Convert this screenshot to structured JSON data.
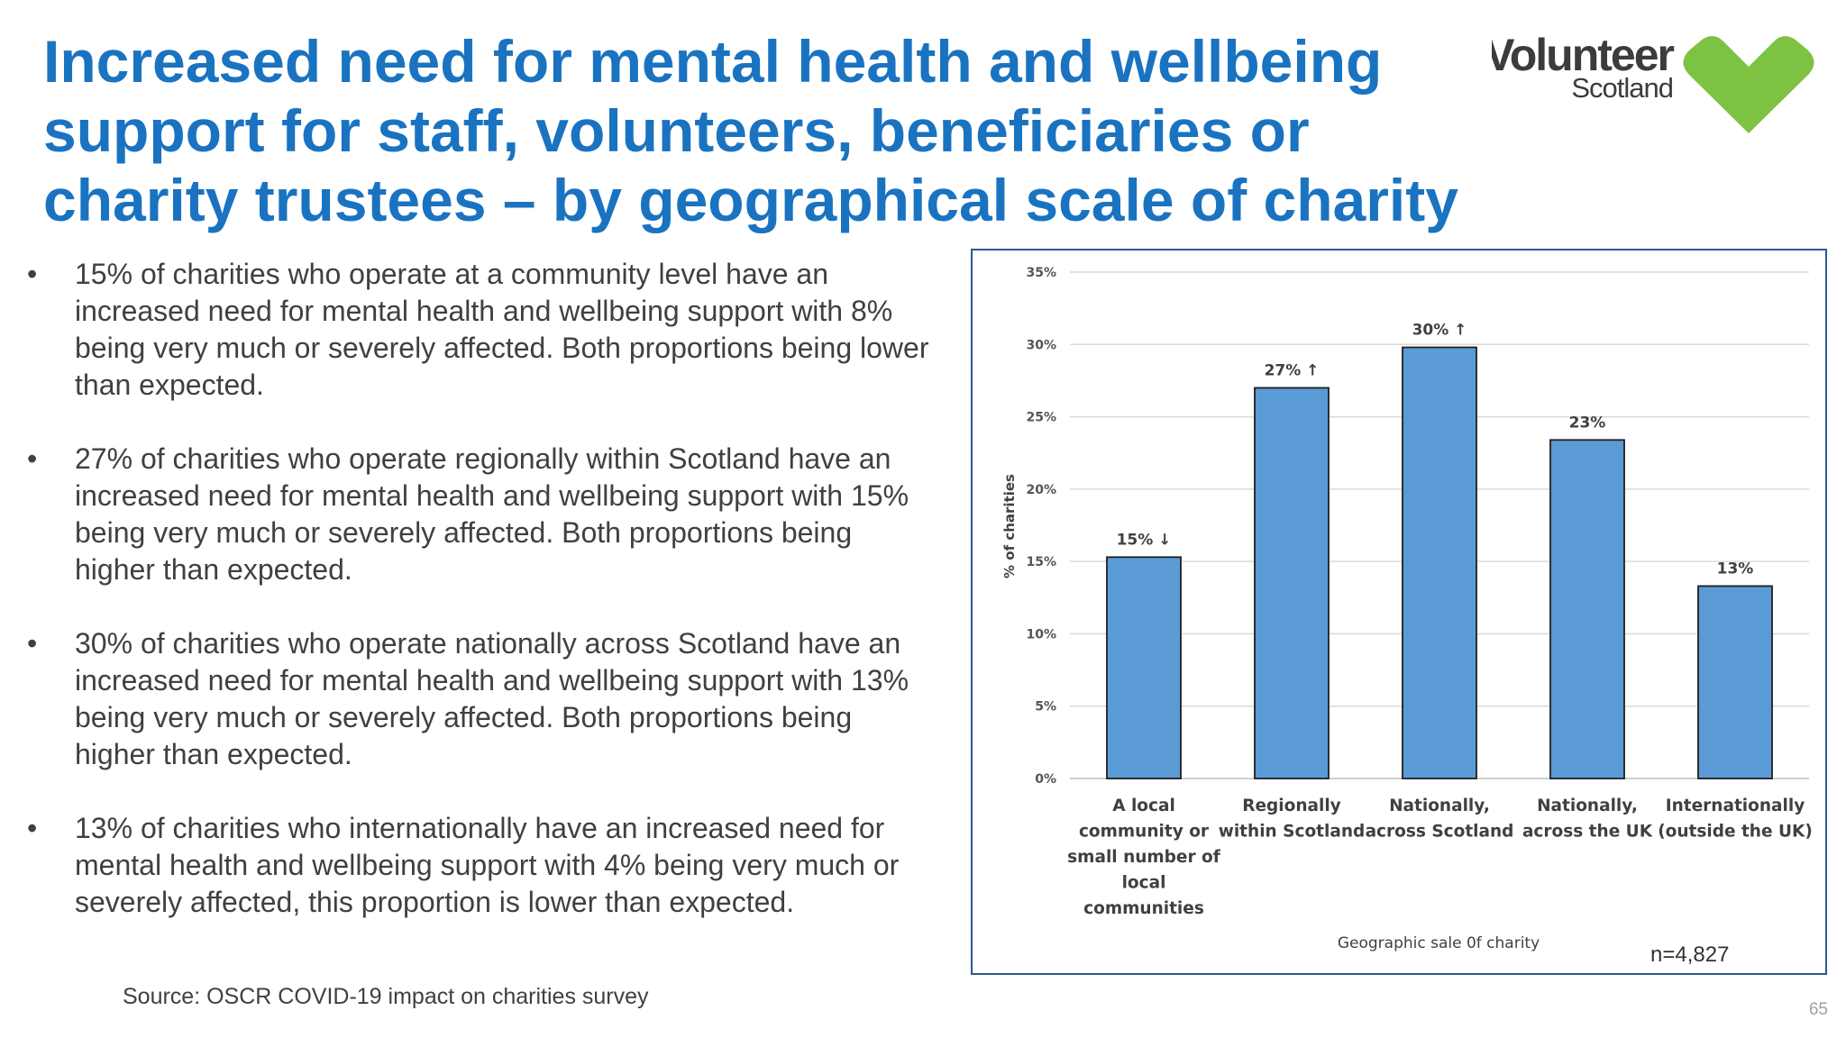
{
  "title": "Increased need for mental health and wellbeing support for staff, volunteers, beneficiaries or charity trustees – by geographical scale of charity",
  "logo": {
    "line1": "Volunteer",
    "line2": "Scotland",
    "icon": "heart-icon",
    "colors": {
      "text": "#3c3c3c",
      "heart": "#7dc242"
    }
  },
  "bullets": [
    {
      "bullet": "•",
      "text": "15% of charities who operate at a community level have an increased need for mental health and wellbeing support with 8% being very much or severely affected. Both proportions being lower than expected."
    },
    {
      "bullet": "•",
      "text": "27% of charities who operate regionally within Scotland have an increased need for mental health and wellbeing support with 15% being very much or severely affected. Both proportions being higher than expected."
    },
    {
      "bullet": "•",
      "text": "30% of charities who operate nationally across Scotland have an increased need for mental health and wellbeing support with 13% being very much or severely affected. Both proportions being higher than expected."
    },
    {
      "bullet": "•",
      "text": "13% of charities who internationally have an increased need for mental health and wellbeing support with 4% being very much or severely affected, this proportion is lower than expected."
    }
  ],
  "source": "Source: OSCR COVID-19 impact on charities survey",
  "page_number": "65",
  "colors": {
    "title": "#1a73c0",
    "bar": "#5b9bd5",
    "bar_border": "#1f1f1f",
    "frame": "#2f5597",
    "grid": "#d9d9d9"
  },
  "chart_data": {
    "type": "bar",
    "categories": [
      [
        "A local",
        "community or",
        "small number of",
        "local",
        "communities"
      ],
      [
        "Regionally",
        "within Scotland"
      ],
      [
        "Nationally,",
        "across Scotland"
      ],
      [
        "Nationally,",
        "across the UK"
      ],
      [
        "Internationally",
        "(outside the UK)"
      ]
    ],
    "values": [
      15.3,
      27.0,
      29.8,
      23.4,
      13.3
    ],
    "data_labels": [
      "15% ↓",
      "27% ↑",
      "30% ↑",
      "23%",
      "13%"
    ],
    "ylabel": "% of charities",
    "xlabel": "Geographic sale 0f charity",
    "ylim": [
      0,
      35
    ],
    "yticks": [
      "0%",
      "5%",
      "10%",
      "15%",
      "20%",
      "25%",
      "30%",
      "35%"
    ],
    "grid": true,
    "note": "n=4,827"
  }
}
